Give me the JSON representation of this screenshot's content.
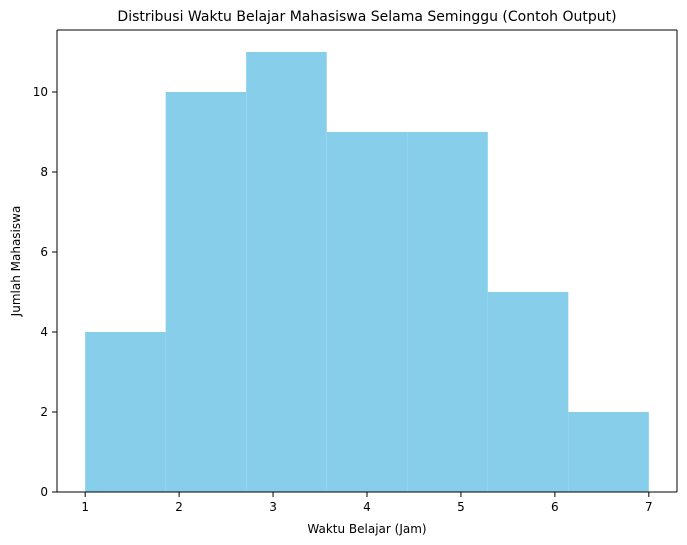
{
  "chart_data": {
    "type": "bar",
    "title": "Distribusi Waktu Belajar Mahasiswa Selama Seminggu (Contoh Output)",
    "xlabel": "Waktu Belajar (Jam)",
    "ylabel": "Jumlah Mahasiswa",
    "bin_edges": [
      1,
      1.857,
      2.714,
      3.571,
      4.429,
      5.286,
      6.143,
      7
    ],
    "values": [
      4,
      10,
      11,
      9,
      9,
      5,
      2
    ],
    "xlim": [
      0.7,
      7.3
    ],
    "ylim": [
      0,
      11.55
    ],
    "xticks": [
      "1",
      "2",
      "3",
      "4",
      "5",
      "6",
      "7"
    ],
    "yticks": [
      "0",
      "2",
      "4",
      "6",
      "8",
      "10"
    ],
    "bar_color": "#87CEEB",
    "grid": false,
    "legend": "none"
  }
}
